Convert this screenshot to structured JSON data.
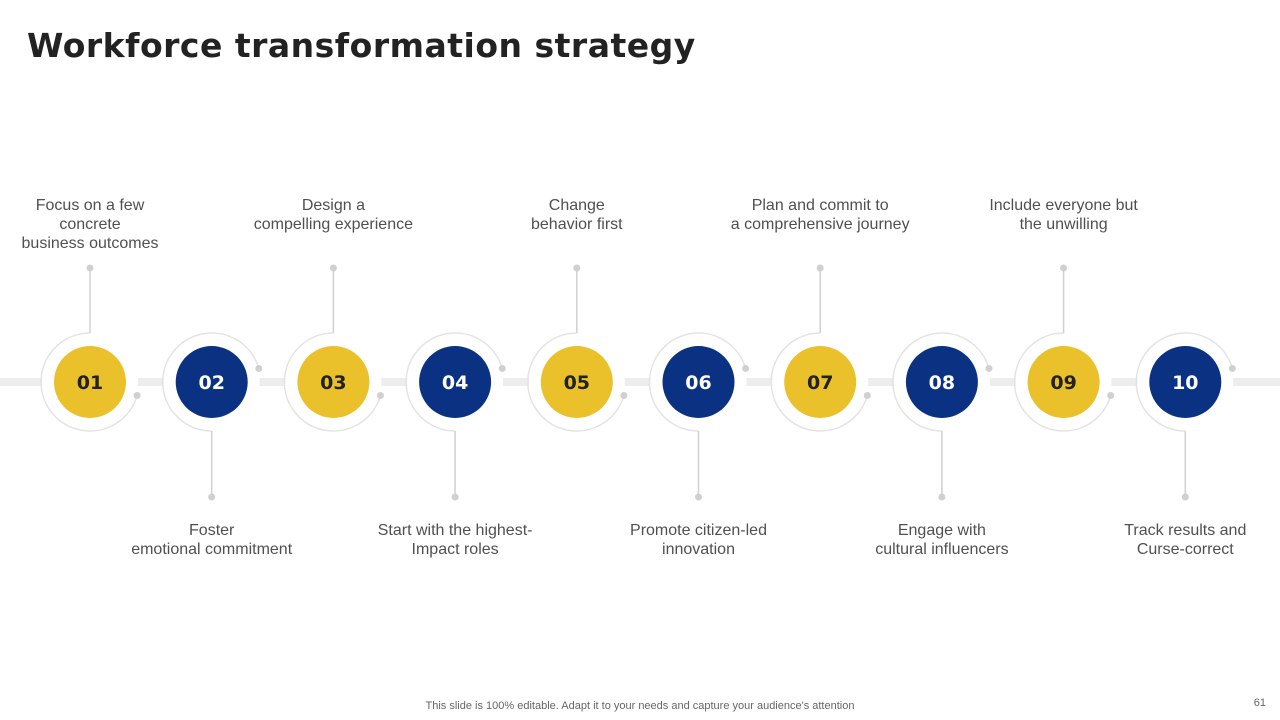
{
  "slide": {
    "title": "Workforce transformation strategy",
    "footer": "This slide is 100% editable. Adapt it to your needs and capture your audience's attention",
    "page_number": "61"
  },
  "colors": {
    "yellow": "#EBC12B",
    "blue": "#0B3282",
    "track": "#EDEDED",
    "ring": "#E3E3E3",
    "connector": "#D0D0D0"
  },
  "steps": [
    {
      "number": "01",
      "label": "Focus on a few\nconcrete\nbusiness outcomes",
      "color": "yellow",
      "label_side": "top"
    },
    {
      "number": "02",
      "label": "Foster\nemotional commitment",
      "color": "blue",
      "label_side": "bottom"
    },
    {
      "number": "03",
      "label": "Design a\ncompelling experience",
      "color": "yellow",
      "label_side": "top"
    },
    {
      "number": "04",
      "label": "Start with the highest-\nImpact roles",
      "color": "blue",
      "label_side": "bottom"
    },
    {
      "number": "05",
      "label": "Change\nbehavior first",
      "color": "yellow",
      "label_side": "top"
    },
    {
      "number": "06",
      "label": "Promote citizen-led\ninnovation",
      "color": "blue",
      "label_side": "bottom"
    },
    {
      "number": "07",
      "label": "Plan and commit to\na comprehensive journey",
      "color": "yellow",
      "label_side": "top"
    },
    {
      "number": "08",
      "label": "Engage with\ncultural influencers",
      "color": "blue",
      "label_side": "bottom"
    },
    {
      "number": "09",
      "label": "Include everyone but\nthe unwilling",
      "color": "yellow",
      "label_side": "top"
    },
    {
      "number": "10",
      "label": "Track results and\nCurse-correct",
      "color": "blue",
      "label_side": "bottom"
    }
  ]
}
